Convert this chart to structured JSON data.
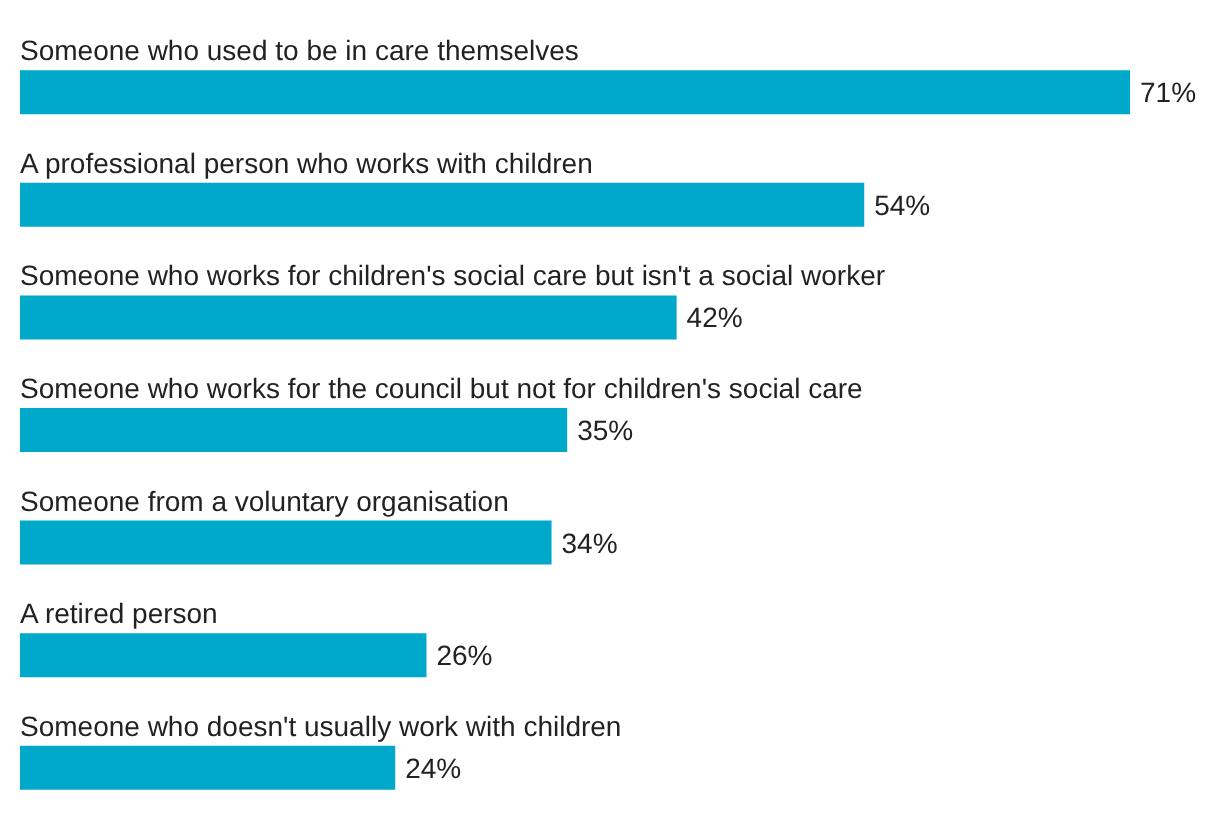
{
  "chart_data": {
    "type": "bar",
    "orientation": "horizontal",
    "categories": [
      "Someone who used to be in care themselves",
      "A professional person who works with children",
      "Someone who works for children's social care but isn't a social worker",
      "Someone who works for the council but not for children's social care",
      "Someone from a voluntary organisation",
      "A retired person",
      "Someone who doesn't usually work with children"
    ],
    "values": [
      71,
      54,
      42,
      35,
      34,
      26,
      24
    ],
    "value_labels": [
      "71%",
      "54%",
      "42%",
      "35%",
      "34%",
      "26%",
      "24%"
    ],
    "color": "#00a9c9"
  }
}
